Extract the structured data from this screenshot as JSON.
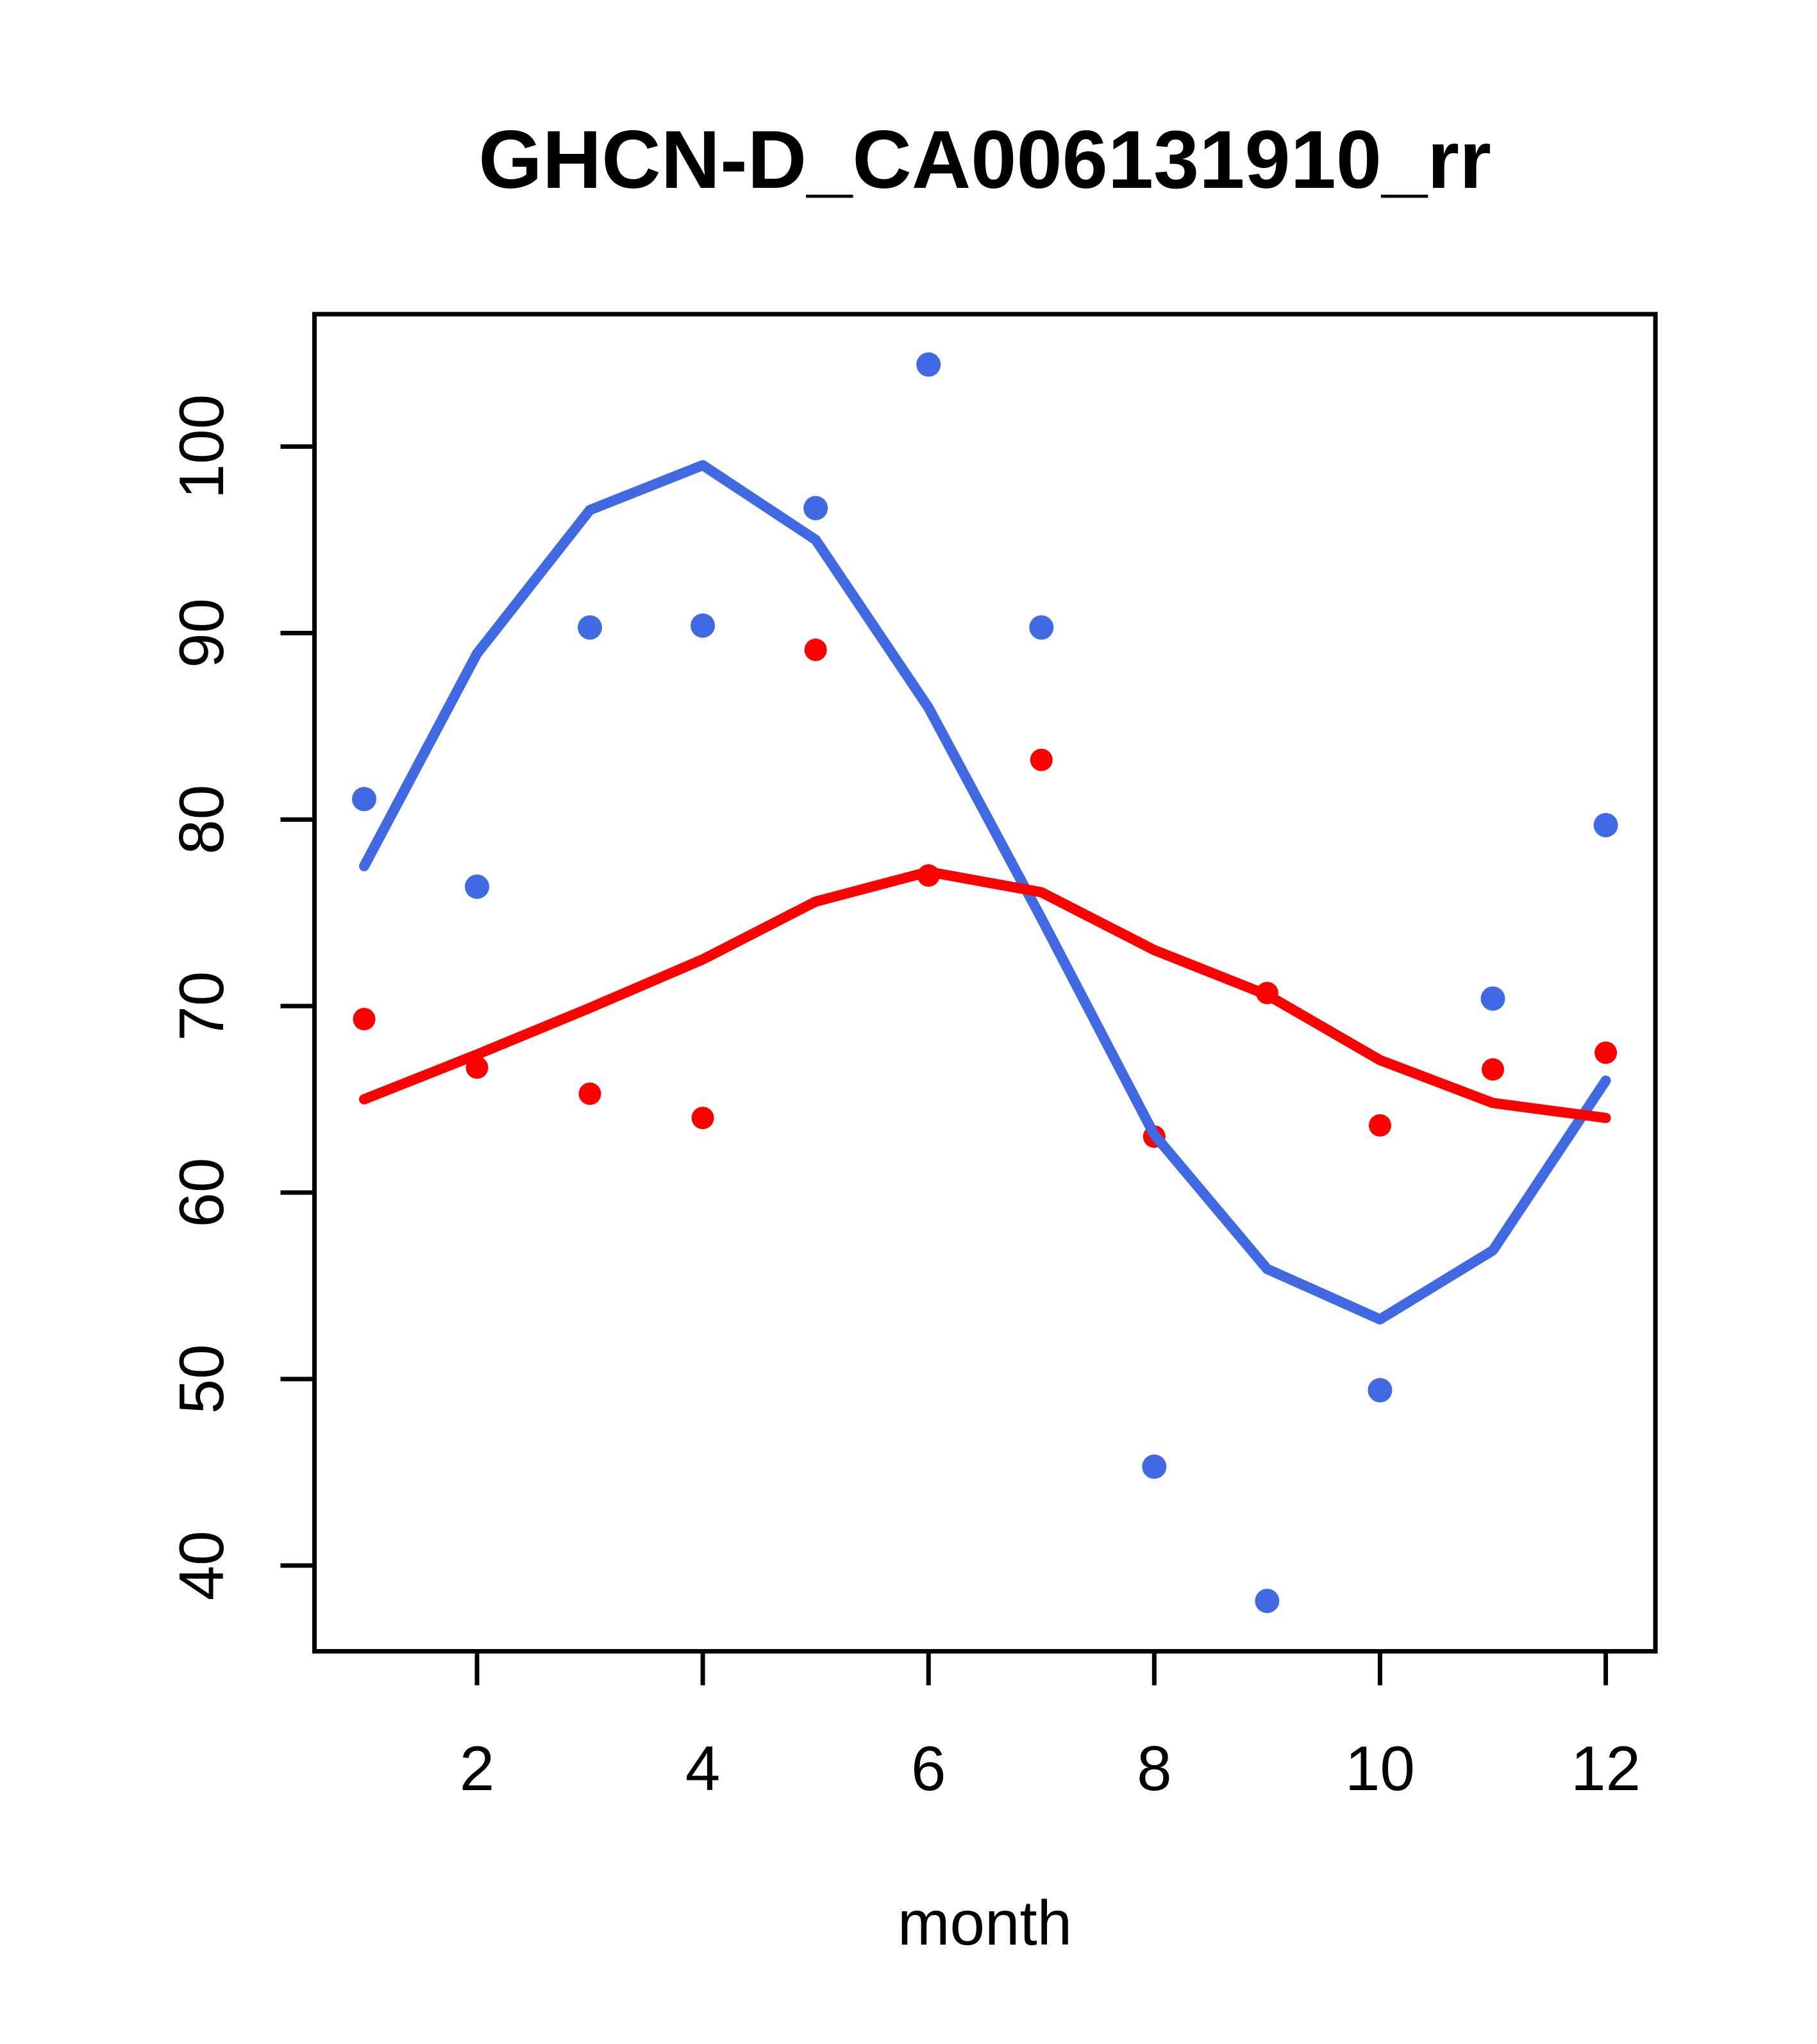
{
  "title": "GHCN-D_CA006131910_rr",
  "colors": {
    "blue": "#4169E1",
    "red": "#FF0000",
    "axis": "#000000",
    "background": "#FFFFFF"
  },
  "chart_data": {
    "type": "scatter",
    "title": "GHCN-D_CA006131910_rr",
    "xlabel": "month",
    "ylabel": "",
    "grid": false,
    "legend": "none",
    "xlim": [
      0.56,
      12.44
    ],
    "ylim": [
      35.4,
      107.1
    ],
    "x_ticks": [
      2,
      4,
      6,
      8,
      10,
      12
    ],
    "y_ticks": [
      40,
      50,
      60,
      70,
      80,
      90,
      100
    ],
    "x": [
      1,
      2,
      3,
      4,
      5,
      6,
      7,
      8,
      9,
      10,
      11,
      12
    ],
    "series": [
      {
        "name": "blue-monthly-points",
        "kind": "points",
        "color": "#4169E1",
        "marker_radius": 19,
        "values": [
          81.1,
          76.4,
          90.3,
          90.4,
          96.7,
          104.4,
          90.3,
          45.3,
          38.1,
          49.4,
          70.4,
          79.7
        ]
      },
      {
        "name": "red-monthly-points",
        "kind": "points",
        "color": "#FF0000",
        "marker_radius": 17.5,
        "values": [
          69.3,
          66.7,
          65.3,
          64.0,
          89.1,
          77.0,
          83.2,
          63.0,
          70.7,
          63.6,
          66.6,
          67.5
        ]
      },
      {
        "name": "blue-fit-line",
        "kind": "line",
        "color": "#4169E1",
        "stroke_width": 16,
        "values": [
          77.5,
          88.9,
          96.6,
          99.0,
          95.0,
          86.0,
          74.7,
          63.1,
          55.9,
          53.2,
          56.9,
          66.0
        ]
      },
      {
        "name": "red-fit-line",
        "kind": "line",
        "color": "#FF0000",
        "stroke_width": 16,
        "values": [
          65.0,
          67.4,
          69.9,
          72.5,
          75.6,
          77.2,
          76.1,
          73.0,
          70.6,
          67.1,
          64.8,
          64.0
        ]
      }
    ]
  }
}
